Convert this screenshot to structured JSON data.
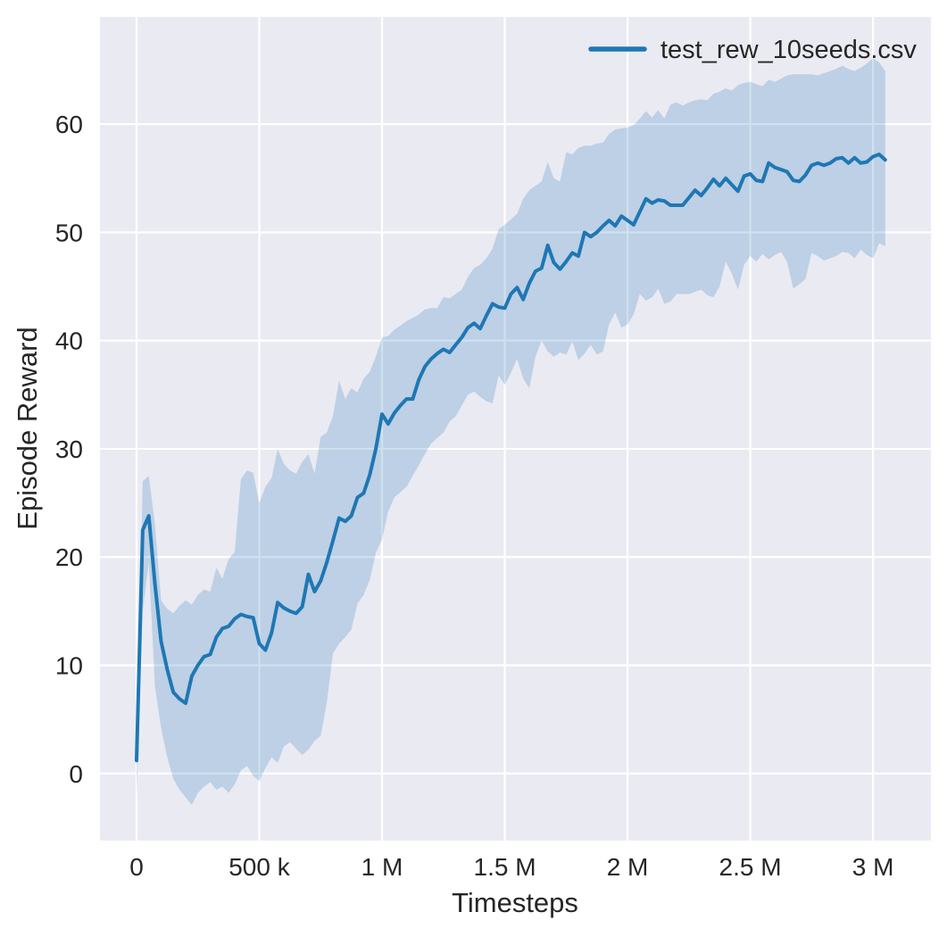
{
  "chart_data": {
    "type": "line",
    "title": "",
    "xlabel": "Timesteps",
    "ylabel": "Episode Reward",
    "grid": true,
    "legend": {
      "position": "upper right",
      "entries": [
        {
          "label": "test_rew_10seeds.csv",
          "color": "#1f77b4"
        }
      ]
    },
    "colors": {
      "axes_background": "#eaeaf2",
      "grid": "#ffffff",
      "text": "#262626",
      "line": "#1f77b4",
      "band": "#1f77b4"
    },
    "xlim": [
      -149000,
      3236000
    ],
    "ylim": [
      -6.2,
      69.9
    ],
    "x_ticks": [
      {
        "value": 0,
        "label": "0"
      },
      {
        "value": 500000,
        "label": "500 k"
      },
      {
        "value": 1000000,
        "label": "1 M"
      },
      {
        "value": 1500000,
        "label": "1.5 M"
      },
      {
        "value": 2000000,
        "label": "2 M"
      },
      {
        "value": 2500000,
        "label": "2.5 M"
      },
      {
        "value": 3000000,
        "label": "3 M"
      }
    ],
    "y_ticks": [
      {
        "value": 0,
        "label": "0"
      },
      {
        "value": 10,
        "label": "10"
      },
      {
        "value": 20,
        "label": "20"
      },
      {
        "value": 30,
        "label": "30"
      },
      {
        "value": 40,
        "label": "40"
      },
      {
        "value": 50,
        "label": "50"
      },
      {
        "value": 60,
        "label": "60"
      }
    ],
    "x_start": 0,
    "x_step": 25000,
    "series": [
      {
        "name": "test_rew_10seeds.csv",
        "color": "#1f77b4",
        "line_width": 4,
        "band_opacity": 0.22,
        "mean": [
          1.2,
          22.5,
          23.8,
          17.5,
          12.2,
          9.6,
          7.5,
          6.9,
          6.5,
          9.0,
          10.0,
          10.8,
          11.0,
          12.6,
          13.4,
          13.6,
          14.3,
          14.7,
          14.5,
          14.4,
          12.0,
          11.4,
          13.0,
          15.8,
          15.3,
          15.0,
          14.8,
          15.4,
          18.4,
          16.8,
          17.8,
          19.5,
          21.5,
          23.6,
          23.3,
          23.8,
          25.5,
          25.9,
          27.6,
          30.0,
          33.2,
          32.3,
          33.3,
          34.0,
          34.6,
          34.6,
          36.4,
          37.6,
          38.3,
          38.8,
          39.2,
          38.9,
          39.6,
          40.3,
          41.2,
          41.6,
          41.1,
          42.3,
          43.4,
          43.1,
          43.0,
          44.3,
          44.9,
          43.8,
          45.3,
          46.4,
          46.7,
          48.8,
          47.2,
          46.6,
          47.3,
          48.1,
          47.8,
          50.0,
          49.6,
          50.0,
          50.6,
          51.1,
          50.6,
          51.5,
          51.1,
          50.7,
          51.9,
          53.1,
          52.7,
          53.0,
          52.9,
          52.5,
          52.5,
          52.5,
          53.2,
          53.9,
          53.4,
          54.1,
          54.9,
          54.3,
          55.0,
          54.4,
          53.8,
          55.2,
          55.4,
          54.8,
          54.7,
          56.4,
          56.0,
          55.8,
          55.6,
          54.8,
          54.7,
          55.3,
          56.2,
          56.4,
          56.2,
          56.4,
          56.8,
          56.9,
          56.4,
          56.9,
          56.4,
          56.5,
          57.0,
          57.2,
          56.7
        ],
        "band_low": [
          -2.4,
          15.0,
          19.5,
          8.0,
          4.2,
          1.5,
          -0.5,
          -1.5,
          -2.2,
          -2.9,
          -1.8,
          -1.2,
          -0.8,
          -1.5,
          -1.2,
          -1.8,
          -1.0,
          0.3,
          0.7,
          -0.2,
          -0.7,
          0.5,
          1.5,
          1.0,
          2.5,
          2.9,
          2.3,
          1.7,
          2.2,
          3.0,
          3.5,
          6.5,
          11.1,
          12.0,
          12.6,
          13.3,
          15.7,
          16.5,
          17.9,
          20.4,
          21.6,
          24.2,
          25.5,
          26.0,
          26.5,
          27.5,
          28.5,
          29.5,
          30.5,
          31.0,
          31.5,
          32.5,
          33.0,
          34.0,
          35.0,
          35.3,
          34.8,
          34.4,
          34.2,
          36.8,
          35.9,
          37.0,
          38.3,
          36.5,
          35.6,
          38.5,
          40.0,
          39.0,
          38.5,
          38.9,
          38.7,
          39.9,
          38.2,
          38.8,
          39.6,
          38.7,
          39.0,
          41.5,
          42.6,
          41.2,
          41.5,
          42.4,
          44.3,
          43.7,
          44.0,
          44.8,
          43.4,
          43.6,
          44.3,
          44.3,
          44.3,
          44.5,
          44.7,
          44.2,
          44.0,
          45.0,
          47.3,
          46.2,
          44.7,
          47.0,
          47.8,
          47.3,
          48.0,
          47.5,
          47.9,
          48.2,
          47.3,
          44.8,
          45.2,
          45.7,
          48.1,
          47.8,
          47.4,
          47.6,
          47.8,
          48.2,
          48.1,
          47.6,
          48.4,
          47.9,
          47.6,
          49.0,
          48.7
        ],
        "band_high": [
          2.0,
          27.0,
          27.5,
          23.0,
          16.0,
          15.2,
          14.8,
          15.5,
          16.0,
          15.6,
          16.5,
          17.0,
          16.8,
          19.0,
          18.0,
          19.8,
          20.5,
          27.2,
          28.0,
          27.8,
          25.0,
          26.5,
          27.3,
          30.0,
          28.6,
          28.0,
          27.7,
          28.8,
          29.5,
          27.7,
          31.1,
          31.5,
          33.0,
          36.3,
          34.6,
          35.6,
          35.2,
          36.5,
          37.1,
          38.5,
          40.3,
          40.4,
          41.0,
          41.4,
          41.8,
          42.1,
          42.4,
          42.9,
          43.0,
          43.0,
          44.0,
          43.9,
          44.3,
          44.7,
          45.9,
          46.7,
          47.0,
          47.6,
          48.5,
          50.3,
          50.7,
          51.2,
          51.7,
          53.1,
          53.9,
          54.3,
          54.7,
          56.5,
          55.0,
          54.7,
          57.4,
          57.2,
          57.8,
          58.0,
          58.0,
          58.2,
          58.3,
          59.1,
          59.5,
          59.6,
          59.7,
          59.9,
          60.5,
          61.2,
          60.6,
          61.3,
          60.5,
          61.8,
          62.0,
          61.7,
          62.0,
          62.2,
          62.3,
          62.2,
          62.8,
          63.0,
          63.3,
          63.1,
          63.6,
          63.8,
          63.9,
          63.7,
          63.5,
          64.1,
          63.9,
          64.2,
          64.5,
          64.6,
          64.6,
          64.6,
          64.6,
          64.5,
          64.7,
          64.9,
          65.1,
          65.4,
          65.1,
          64.9,
          65.2,
          65.6,
          66.1,
          65.7,
          64.9
        ]
      }
    ]
  }
}
